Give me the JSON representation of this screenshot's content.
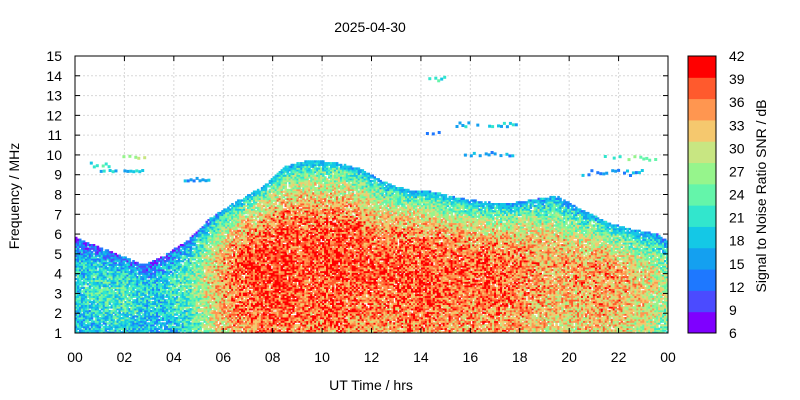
{
  "chart_data": {
    "type": "heatmap",
    "title": "2025-04-30",
    "xlabel": "UT Time / hrs",
    "ylabel": "Frequency / MHz",
    "colorbar_label": "Signal to Noise Ratio SNR / dB",
    "xlim": [
      0,
      24
    ],
    "ylim": [
      1,
      15
    ],
    "x_ticks": [
      "00",
      "02",
      "04",
      "06",
      "08",
      "10",
      "12",
      "14",
      "16",
      "18",
      "20",
      "22",
      "00"
    ],
    "y_ticks": [
      "1",
      "2",
      "3",
      "4",
      "5",
      "6",
      "7",
      "8",
      "9",
      "10",
      "11",
      "12",
      "13",
      "14",
      "15"
    ],
    "colorbar_ticks": [
      "6",
      "9",
      "12",
      "15",
      "18",
      "21",
      "24",
      "27",
      "30",
      "33",
      "36",
      "39",
      "42"
    ],
    "colorbar_range": [
      6,
      42
    ],
    "colorbar_colors": [
      "#7f00ff",
      "#4b4bff",
      "#1e78ff",
      "#14a0f0",
      "#14c8e6",
      "#32e6cd",
      "#64f5aa",
      "#96f58c",
      "#c8e682",
      "#f5c86e",
      "#ff9650",
      "#ff5a2d",
      "#ff0000"
    ],
    "grid": true,
    "snr_envelope": {
      "hours": [
        0,
        1,
        2,
        2.8,
        3.5,
        4.5,
        5.5,
        6.5,
        7.5,
        8.5,
        9.5,
        10.5,
        11.5,
        12.5,
        13.5,
        14.5,
        15.5,
        16.5,
        17.5,
        18.5,
        19.5,
        20.5,
        21.5,
        22.5,
        23.5,
        24
      ],
      "upper_mhz": [
        5.8,
        5.3,
        4.8,
        4.4,
        4.8,
        5.6,
        6.8,
        7.6,
        8.3,
        9.4,
        9.7,
        9.6,
        9.3,
        8.6,
        8.2,
        8.1,
        7.8,
        7.6,
        7.5,
        7.7,
        7.9,
        7.2,
        6.6,
        6.2,
        6.0,
        5.6
      ],
      "peak_snr_db": [
        22,
        24,
        25,
        22,
        22,
        26,
        34,
        40,
        42,
        42,
        41,
        42,
        41,
        40,
        41,
        41,
        40,
        40,
        40,
        38,
        36,
        37,
        38,
        36,
        33,
        30
      ]
    },
    "sporadic_clusters": [
      {
        "hours": [
          0.6,
          1.5
        ],
        "mhz": [
          9.4,
          9.7
        ],
        "snr_db": 21
      },
      {
        "hours": [
          1.8,
          3.0
        ],
        "mhz": [
          9.9,
          10.1
        ],
        "snr_db": 27
      },
      {
        "hours": [
          1.0,
          2.8
        ],
        "mhz": [
          9.2,
          9.3
        ],
        "snr_db": 18
      },
      {
        "hours": [
          4.4,
          5.4
        ],
        "mhz": [
          8.7,
          8.9
        ],
        "snr_db": 15
      },
      {
        "hours": [
          15.5,
          17.8
        ],
        "mhz": [
          10.0,
          10.2
        ],
        "snr_db": 15
      },
      {
        "hours": [
          15.4,
          18.0
        ],
        "mhz": [
          11.5,
          11.7
        ],
        "snr_db": 18
      },
      {
        "hours": [
          14.2,
          14.9
        ],
        "mhz": [
          11.1,
          11.3
        ],
        "snr_db": 15
      },
      {
        "hours": [
          14.3,
          15.0
        ],
        "mhz": [
          13.8,
          14.0
        ],
        "snr_db": 21
      },
      {
        "hours": [
          21.4,
          23.6
        ],
        "mhz": [
          9.8,
          10.0
        ],
        "snr_db": 24
      },
      {
        "hours": [
          20.5,
          23.5
        ],
        "mhz": [
          9.0,
          9.3
        ],
        "snr_db": 15
      }
    ]
  }
}
